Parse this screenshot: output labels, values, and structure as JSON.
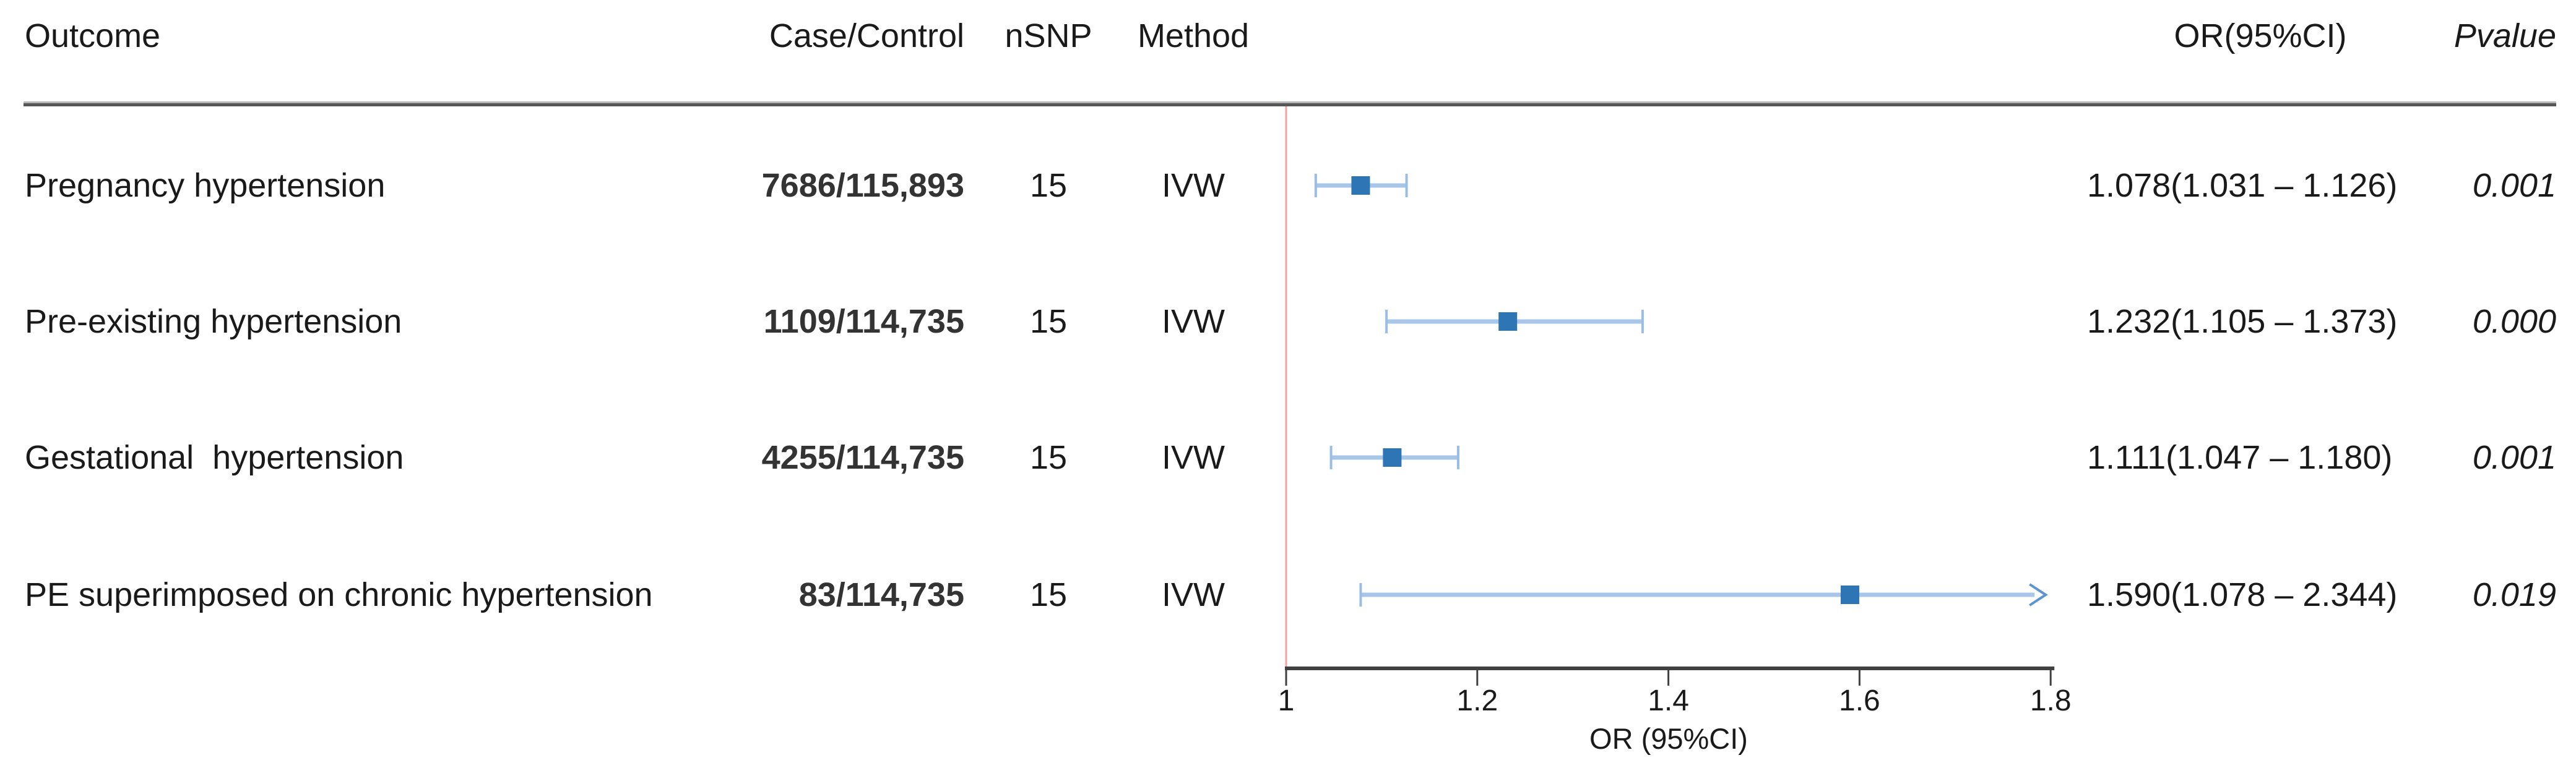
{
  "header": {
    "outcome": "Outcome",
    "case_control": "Case/Control",
    "nsnp": "nSNP",
    "method": "Method",
    "or_ci": "OR(95%CI)",
    "pvalue": "Pvalue"
  },
  "rows": [
    {
      "outcome": "Pregnancy hypertension",
      "case_control": "7686/115,893",
      "nsnp": "15",
      "method": "IVW",
      "or_ci": "1.078(1.031 – 1.126)",
      "pvalue": "0.001"
    },
    {
      "outcome": "Pre-existing hypertension",
      "case_control": "1109/114,735",
      "nsnp": "15",
      "method": "IVW",
      "or_ci": "1.232(1.105 – 1.373)",
      "pvalue": "0.000"
    },
    {
      "outcome": "Gestational  hypertension",
      "case_control": "4255/114,735",
      "nsnp": "15",
      "method": "IVW",
      "or_ci": "1.111(1.047 – 1.180)",
      "pvalue": "0.001"
    },
    {
      "outcome": "PE superimposed on chronic hypertension",
      "case_control": "83/114,735",
      "nsnp": "15",
      "method": "IVW",
      "or_ci": "1.590(1.078 – 2.344)",
      "pvalue": "0.019"
    }
  ],
  "chart_data": {
    "type": "scatter",
    "subtype": "forest-plot",
    "title": "",
    "categories": [
      "Pregnancy hypertension",
      "Pre-existing hypertension",
      "Gestational hypertension",
      "PE superimposed on chronic hypertension"
    ],
    "series": [
      {
        "name": "Pregnancy hypertension",
        "or": 1.078,
        "ci_low": 1.031,
        "ci_high": 1.126,
        "pvalue": 0.001
      },
      {
        "name": "Pre-existing hypertension",
        "or": 1.232,
        "ci_low": 1.105,
        "ci_high": 1.373,
        "pvalue": 0.0
      },
      {
        "name": "Gestational hypertension",
        "or": 1.111,
        "ci_low": 1.047,
        "ci_high": 1.18,
        "pvalue": 0.001
      },
      {
        "name": "PE superimposed on chronic hypertension",
        "or": 1.59,
        "ci_low": 1.078,
        "ci_high": 2.344,
        "pvalue": 0.019
      }
    ],
    "axis": {
      "label": "OR (95%CI)",
      "xlim": [
        1.0,
        1.8
      ],
      "ticks": [
        1,
        1.2,
        1.4,
        1.6,
        1.8
      ],
      "tick_labels": [
        "1",
        "1.2",
        "1.4",
        "1.6",
        "1.8"
      ],
      "reference_line": 1.0,
      "grid": false,
      "clipped_high_drawn_as_arrow": true
    }
  },
  "colors": {
    "marker": "#2E75B6",
    "ci_line": "#A7C6E8",
    "ci_cap": "#9BBDE4",
    "arrow": "#5B94CE",
    "reference_line": "#F5A2A0",
    "axis": "#404040",
    "divider": "#565656",
    "text": "#1A1A1A"
  }
}
